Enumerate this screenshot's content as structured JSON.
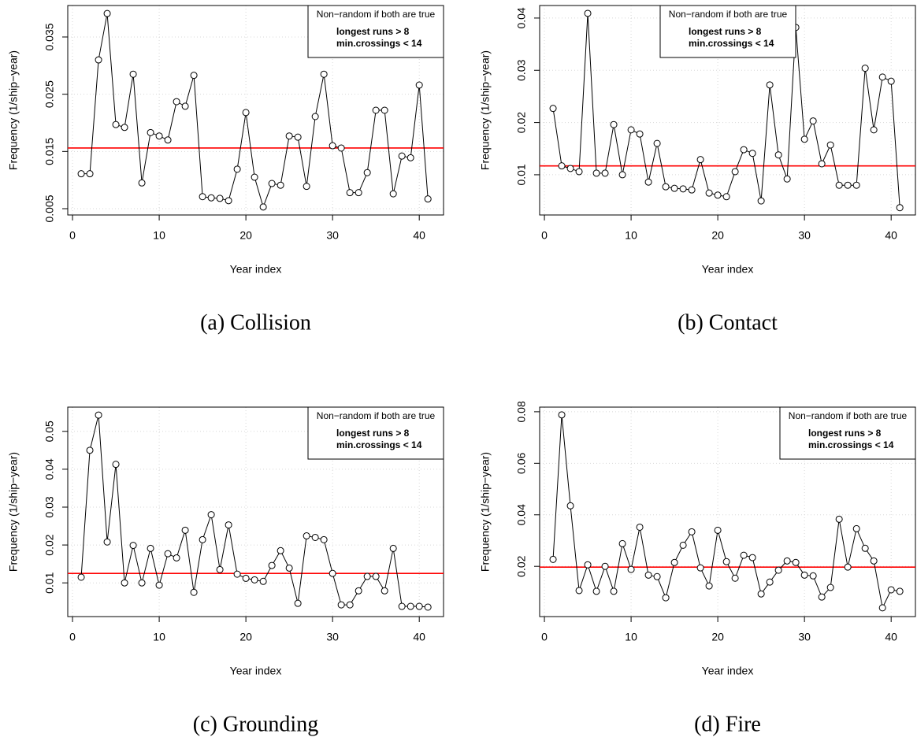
{
  "chart_data": [
    {
      "type": "line",
      "caption": "(a) Collision",
      "xlabel": "Year index",
      "ylabel": "Frequency (1/ship−year)",
      "annotations": [
        "Non−random if both are true",
        "longest runs > 8",
        "min.crossings < 14"
      ],
      "legend_position": "topright",
      "grid": true,
      "xlim": [
        -0.55,
        42.8
      ],
      "xticks": [
        0,
        10,
        20,
        30,
        40
      ],
      "ylim": [
        0.0039,
        0.0405
      ],
      "yticks": [
        0.005,
        0.015,
        0.025,
        0.035
      ],
      "hline": {
        "value": 0.0156,
        "color": "#ff0000"
      },
      "x": [
        1,
        2,
        3,
        4,
        5,
        6,
        7,
        8,
        9,
        10,
        11,
        12,
        13,
        14,
        15,
        16,
        17,
        18,
        19,
        20,
        21,
        22,
        23,
        24,
        25,
        26,
        27,
        28,
        29,
        30,
        31,
        32,
        33,
        34,
        35,
        36,
        37,
        38,
        39,
        40,
        41
      ],
      "color": "#000000",
      "values": [
        0.0111,
        0.0111,
        0.031,
        0.0391,
        0.0197,
        0.0192,
        0.0285,
        0.0095,
        0.0183,
        0.0177,
        0.017,
        0.0237,
        0.0229,
        0.0283,
        0.0071,
        0.0069,
        0.0068,
        0.0064,
        0.0119,
        0.0218,
        0.0105,
        0.0053,
        0.0094,
        0.0091,
        0.0177,
        0.0175,
        0.0089,
        0.0211,
        0.0285,
        0.016,
        0.0156,
        0.0078,
        0.0078,
        0.0113,
        0.0222,
        0.0222,
        0.0076,
        0.0142,
        0.0139,
        0.0266,
        0.0067
      ]
    },
    {
      "type": "line",
      "caption": "(b) Contact",
      "xlabel": "Year index",
      "ylabel": "Frequency (1/ship−year)",
      "annotations": [
        "Non−random if both are true",
        "longest runs > 8",
        "min.crossings < 14"
      ],
      "legend_position": "top",
      "grid": true,
      "xlim": [
        -0.55,
        42.8
      ],
      "xticks": [
        0,
        10,
        20,
        30,
        40
      ],
      "ylim": [
        0.0023,
        0.0424
      ],
      "yticks": [
        0.01,
        0.02,
        0.03,
        0.04
      ],
      "hline": {
        "value": 0.0117,
        "color": "#ff0000"
      },
      "x": [
        1,
        2,
        3,
        4,
        5,
        6,
        7,
        8,
        9,
        10,
        11,
        12,
        13,
        14,
        15,
        16,
        17,
        18,
        19,
        20,
        21,
        22,
        23,
        24,
        25,
        26,
        27,
        28,
        29,
        30,
        31,
        32,
        33,
        34,
        35,
        36,
        37,
        38,
        39,
        40,
        41
      ],
      "color": "#000000",
      "values": [
        0.0227,
        0.0117,
        0.0112,
        0.0106,
        0.0409,
        0.0103,
        0.0103,
        0.0196,
        0.01,
        0.0186,
        0.0178,
        0.0086,
        0.016,
        0.0077,
        0.0074,
        0.0073,
        0.0071,
        0.0129,
        0.0065,
        0.0061,
        0.0058,
        0.0106,
        0.0148,
        0.0141,
        0.005,
        0.0272,
        0.0138,
        0.0092,
        0.0382,
        0.0168,
        0.0203,
        0.0121,
        0.0157,
        0.008,
        0.008,
        0.008,
        0.0304,
        0.0186,
        0.0287,
        0.0279,
        0.0037
      ]
    },
    {
      "type": "line",
      "caption": "(c) Grounding",
      "xlabel": "Year index",
      "ylabel": "Frequency (1/ship−year)",
      "annotations": [
        "Non−random if both are true",
        "longest runs > 8",
        "min.crossings < 14"
      ],
      "legend_position": "topright",
      "grid": true,
      "xlim": [
        -0.55,
        42.8
      ],
      "xticks": [
        0,
        10,
        20,
        30,
        40
      ],
      "ylim": [
        0.0011,
        0.0564
      ],
      "yticks": [
        0.01,
        0.02,
        0.03,
        0.04,
        0.05
      ],
      "hline": {
        "value": 0.0125,
        "color": "#ff0000"
      },
      "x": [
        1,
        2,
        3,
        4,
        5,
        6,
        7,
        8,
        9,
        10,
        11,
        12,
        13,
        14,
        15,
        16,
        17,
        18,
        19,
        20,
        21,
        22,
        23,
        24,
        25,
        26,
        27,
        28,
        29,
        30,
        31,
        32,
        33,
        34,
        35,
        36,
        37,
        38,
        39,
        40,
        41
      ],
      "color": "#000000",
      "values": [
        0.0115,
        0.045,
        0.0543,
        0.0208,
        0.0413,
        0.01,
        0.0199,
        0.01,
        0.0191,
        0.0094,
        0.0177,
        0.0166,
        0.0239,
        0.0075,
        0.0214,
        0.028,
        0.0135,
        0.0253,
        0.0123,
        0.0112,
        0.0108,
        0.0104,
        0.0146,
        0.0185,
        0.0139,
        0.0046,
        0.0224,
        0.022,
        0.0214,
        0.0125,
        0.0042,
        0.0042,
        0.0079,
        0.0117,
        0.0117,
        0.0079,
        0.0191,
        0.0038,
        0.0038,
        0.0038,
        0.0036
      ]
    },
    {
      "type": "line",
      "caption": "(d) Fire",
      "xlabel": "Year index",
      "ylabel": "Frequency (1/ship−year)",
      "annotations": [
        "Non−random if both are true",
        "longest runs > 8",
        "min.crossings < 14"
      ],
      "legend_position": "topright",
      "grid": true,
      "xlim": [
        -0.55,
        42.8
      ],
      "xticks": [
        0,
        10,
        20,
        30,
        40
      ],
      "ylim": [
        0.0005,
        0.0818
      ],
      "yticks": [
        0.02,
        0.04,
        0.06,
        0.08
      ],
      "hline": {
        "value": 0.0197,
        "color": "#ff0000"
      },
      "x": [
        1,
        2,
        3,
        4,
        5,
        6,
        7,
        8,
        9,
        10,
        11,
        12,
        13,
        14,
        15,
        16,
        17,
        18,
        19,
        20,
        21,
        22,
        23,
        24,
        25,
        26,
        27,
        28,
        29,
        30,
        31,
        32,
        33,
        34,
        35,
        36,
        37,
        38,
        39,
        40,
        41
      ],
      "color": "#000000",
      "values": [
        0.0227,
        0.0788,
        0.0435,
        0.0106,
        0.0206,
        0.0103,
        0.02,
        0.0103,
        0.0288,
        0.0188,
        0.0352,
        0.0166,
        0.016,
        0.0078,
        0.0215,
        0.0282,
        0.0334,
        0.0194,
        0.0124,
        0.034,
        0.0218,
        0.0154,
        0.0243,
        0.0234,
        0.0093,
        0.0139,
        0.0185,
        0.0221,
        0.0215,
        0.0166,
        0.0163,
        0.0081,
        0.0118,
        0.0383,
        0.0197,
        0.0346,
        0.027,
        0.0221,
        0.0039,
        0.0109,
        0.0103
      ]
    }
  ]
}
